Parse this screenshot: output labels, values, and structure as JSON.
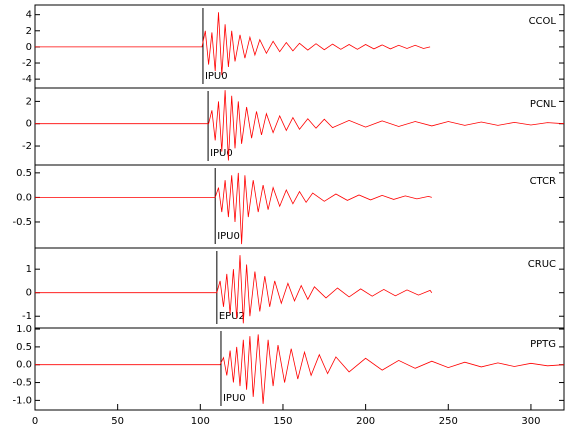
{
  "chart_data": [
    {
      "type": "line",
      "label": "CCOL",
      "color": "#ff0000",
      "pick": {
        "x": 101.6,
        "label": "IPU0"
      },
      "xlim": [
        0,
        320
      ],
      "ylim": [
        -5.1,
        5.2
      ],
      "yticks": [
        -4,
        -2,
        0,
        2,
        4
      ],
      "x": [
        0,
        101,
        103,
        105,
        107,
        109,
        111,
        113,
        115,
        117,
        119,
        121,
        124,
        127,
        130,
        133,
        136,
        140,
        144,
        148,
        152,
        156,
        160,
        165,
        170,
        175,
        180,
        185,
        190,
        195,
        200,
        205,
        210,
        215,
        220,
        225,
        230,
        235,
        239
      ],
      "values": [
        0,
        0,
        2,
        -2.2,
        1.8,
        -3,
        4.3,
        -3.5,
        2.8,
        -2.5,
        2,
        -1.8,
        1.5,
        -1.4,
        1.2,
        -1,
        0.9,
        -0.8,
        0.7,
        -0.6,
        0.55,
        -0.5,
        0.45,
        -0.4,
        0.4,
        -0.35,
        0.35,
        -0.3,
        0.3,
        -0.3,
        0.3,
        -0.25,
        0.25,
        -0.25,
        0.2,
        -0.2,
        0.2,
        -0.2,
        0
      ]
    },
    {
      "type": "line",
      "label": "PCNL",
      "color": "#ff0000",
      "pick": {
        "x": 104.7,
        "label": "IPU0"
      },
      "xlim": [
        0,
        320
      ],
      "ylim": [
        -3.7,
        3.2
      ],
      "yticks": [
        -2,
        0,
        2
      ],
      "x": [
        0,
        105,
        107,
        109,
        111,
        113,
        115,
        117,
        119,
        121,
        123,
        125,
        128,
        131,
        134,
        137,
        140,
        144,
        148,
        152,
        156,
        160,
        165,
        170,
        175,
        180,
        190,
        200,
        210,
        220,
        230,
        240,
        250,
        260,
        270,
        280,
        290,
        300,
        310,
        320
      ],
      "values": [
        0,
        0,
        1.2,
        -1.5,
        2,
        -2.5,
        3,
        -3.3,
        2.5,
        -2.2,
        2,
        -1.8,
        1.5,
        -1.3,
        1.1,
        -1,
        0.9,
        -0.8,
        0.7,
        -0.6,
        0.55,
        -0.5,
        0.45,
        -0.4,
        0.4,
        -0.35,
        0.3,
        -0.3,
        0.25,
        -0.25,
        0.2,
        -0.2,
        0.2,
        -0.15,
        0.15,
        -0.15,
        0.12,
        -0.12,
        0.1,
        0
      ]
    },
    {
      "type": "line",
      "label": "CTCR",
      "color": "#ff0000",
      "pick": {
        "x": 109,
        "label": "IPU0"
      },
      "xlim": [
        0,
        320
      ],
      "ylim": [
        -1.03,
        0.66
      ],
      "yticks": [
        -0.5,
        {
          "value": 0,
          "label": "0.0"
        },
        0.5
      ],
      "x": [
        0,
        109,
        111,
        113,
        115,
        117,
        119,
        121,
        123,
        125,
        127,
        129,
        132,
        135,
        138,
        141,
        144,
        148,
        152,
        156,
        160,
        164,
        168,
        175,
        182,
        189,
        196,
        203,
        210,
        217,
        224,
        231,
        238,
        240
      ],
      "values": [
        0,
        0,
        0.2,
        -0.3,
        0.35,
        -0.4,
        0.45,
        -0.5,
        0.5,
        -0.95,
        0.45,
        -0.4,
        0.35,
        -0.3,
        0.25,
        -0.25,
        0.2,
        -0.18,
        0.15,
        -0.13,
        0.12,
        -0.1,
        0.09,
        -0.08,
        0.07,
        -0.06,
        0.05,
        -0.05,
        0.04,
        -0.04,
        0.03,
        -0.03,
        0.02,
        0
      ]
    },
    {
      "type": "line",
      "label": "CRUC",
      "color": "#ff0000",
      "pick": {
        "x": 110,
        "label": "EPU2"
      },
      "xlim": [
        0,
        320
      ],
      "ylim": [
        -1.5,
        1.9
      ],
      "yticks": [
        -1,
        0,
        1
      ],
      "x": [
        0,
        110,
        112,
        114,
        116,
        118,
        120,
        122,
        124,
        126,
        128,
        130,
        133,
        136,
        139,
        142,
        145,
        149,
        153,
        157,
        161,
        165,
        169,
        176,
        183,
        190,
        197,
        204,
        211,
        218,
        225,
        232,
        239,
        240
      ],
      "values": [
        0,
        0,
        0.5,
        -0.6,
        0.8,
        -0.9,
        1,
        -1.1,
        1.6,
        -1.3,
        1.2,
        -1,
        0.9,
        -0.8,
        0.7,
        -0.6,
        0.5,
        -0.45,
        0.4,
        -0.35,
        0.3,
        -0.28,
        0.25,
        -0.22,
        0.2,
        -0.18,
        0.16,
        -0.15,
        0.14,
        -0.13,
        0.12,
        -0.1,
        0.1,
        0
      ]
    },
    {
      "type": "line",
      "label": "PPTG",
      "color": "#ff0000",
      "pick": {
        "x": 112.5,
        "label": "IPU0"
      },
      "xlim": [
        0,
        320
      ],
      "ylim": [
        -1.27,
        1.03
      ],
      "yticks": [
        {
          "value": -1,
          "label": "-1.0"
        },
        -0.5,
        {
          "value": 0,
          "label": "0.0"
        },
        0.5,
        {
          "value": 1,
          "label": "1.0"
        }
      ],
      "xticks": [
        0,
        50,
        100,
        150,
        200,
        250,
        300
      ],
      "x": [
        0,
        112,
        114,
        116,
        118,
        120,
        122,
        124,
        126,
        128,
        130,
        132,
        135,
        138,
        141,
        144,
        147,
        151,
        155,
        159,
        163,
        167,
        172,
        177,
        182,
        190,
        200,
        210,
        220,
        230,
        240,
        250,
        260,
        270,
        280,
        290,
        300,
        310,
        320
      ],
      "values": [
        0,
        0,
        0.2,
        -0.3,
        0.4,
        -0.5,
        0.5,
        -0.6,
        0.7,
        -0.7,
        0.8,
        -0.9,
        0.85,
        -1.1,
        0.7,
        -0.6,
        0.55,
        -0.5,
        0.45,
        -0.4,
        0.35,
        -0.3,
        0.28,
        -0.25,
        0.22,
        -0.2,
        0.18,
        -0.15,
        0.12,
        -0.1,
        0.1,
        -0.08,
        0.07,
        -0.06,
        0.05,
        -0.05,
        0.04,
        -0.03,
        0
      ]
    }
  ]
}
